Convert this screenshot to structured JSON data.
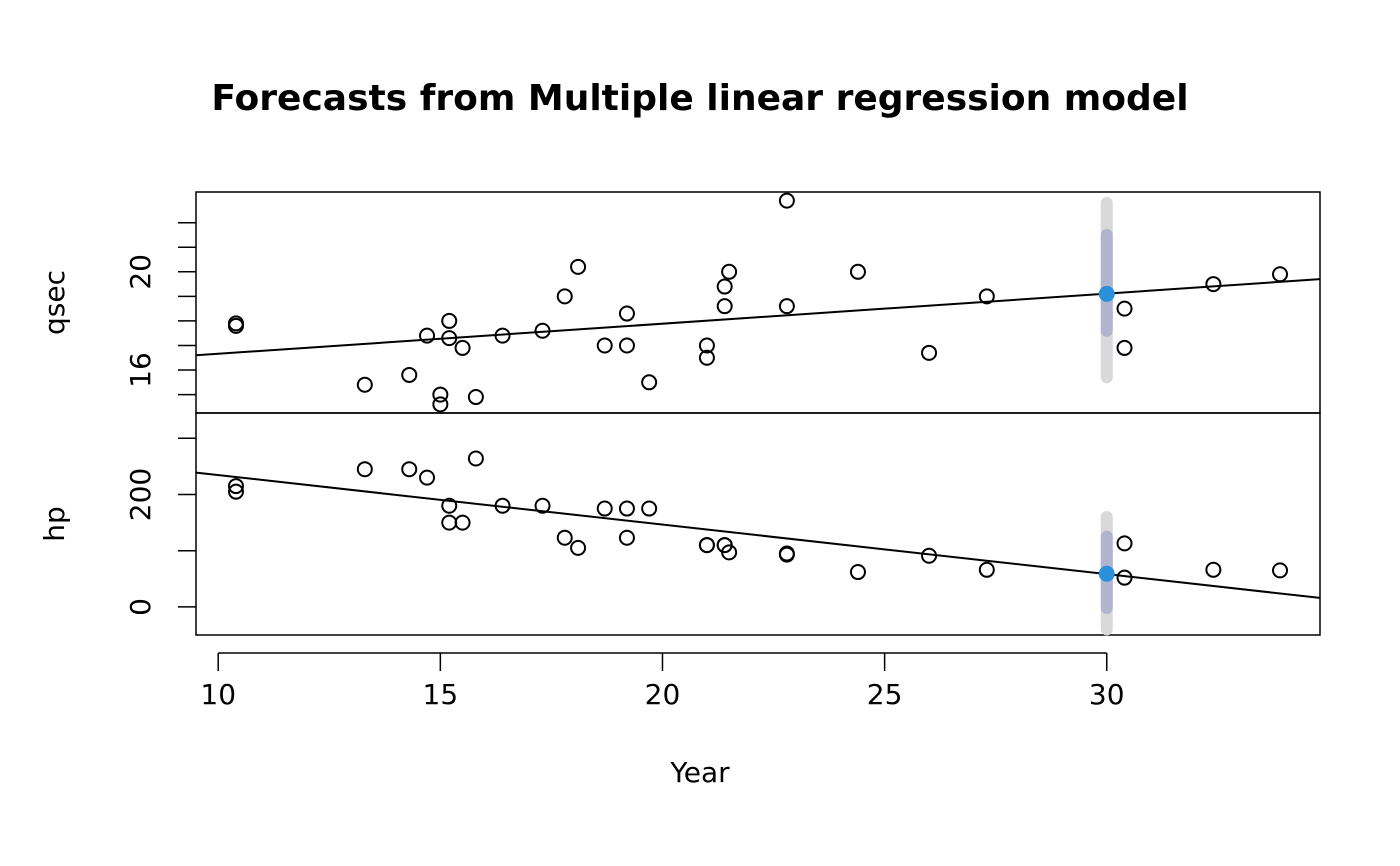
{
  "chart_data": {
    "type": "scatter",
    "title": "Forecasts from Multiple linear regression model",
    "xlabel": "Year",
    "x_ticks": [
      10,
      15,
      20,
      25,
      30
    ],
    "xlim": [
      9.5,
      34.8
    ],
    "colors": {
      "points": "#000000",
      "forecast_point": "#2a90da",
      "interval_80": "#b0b4cc",
      "interval_95": "#d9d9dc",
      "fit_line": "#000000"
    },
    "panels": [
      {
        "ylabel": "qsec",
        "ylim": [
          14.25,
          23.25
        ],
        "y_ticks": [
          15,
          16,
          17,
          18,
          19,
          20,
          21,
          22
        ],
        "y_tick_labels": [
          "",
          "16",
          "",
          "",
          "",
          "20",
          "",
          ""
        ],
        "fit_line": {
          "x": [
            9.5,
            34.8
          ],
          "y": [
            16.6,
            19.7
          ]
        },
        "forecast": {
          "x": 30,
          "y": 19.1,
          "lo80": 17.6,
          "hi80": 21.5,
          "lo95": 15.7,
          "hi95": 22.8
        },
        "x": [
          10.4,
          10.4,
          13.3,
          14.3,
          14.7,
          15.0,
          15.0,
          15.2,
          15.2,
          15.5,
          15.8,
          16.4,
          17.3,
          17.8,
          18.1,
          18.7,
          19.2,
          19.2,
          19.7,
          21.0,
          21.0,
          21.4,
          21.4,
          21.5,
          22.8,
          22.8,
          24.4,
          26.0,
          27.3,
          30.4,
          30.4,
          32.4,
          33.9
        ],
        "y": [
          17.8,
          17.9,
          15.4,
          15.8,
          17.4,
          15.0,
          14.6,
          17.3,
          18.0,
          16.9,
          14.9,
          17.4,
          17.6,
          19.0,
          20.2,
          17.0,
          18.3,
          17.0,
          15.5,
          17.0,
          16.5,
          19.4,
          18.6,
          20.0,
          22.9,
          18.6,
          20.0,
          16.7,
          19.0,
          18.5,
          16.9,
          19.5,
          19.9
        ]
      },
      {
        "ylabel": "hp",
        "ylim": [
          -50,
          345
        ],
        "y_ticks": [
          0,
          100,
          200,
          300
        ],
        "y_tick_labels": [
          "0",
          "",
          "200",
          ""
        ],
        "fit_line": {
          "x": [
            9.5,
            34.8
          ],
          "y": [
            239,
            16
          ]
        },
        "forecast": {
          "x": 30,
          "y": 59,
          "lo80": -2,
          "hi80": 125,
          "lo95": -40,
          "hi95": 160
        },
        "x": [
          10.4,
          10.4,
          13.3,
          14.3,
          14.7,
          15.2,
          15.2,
          15.5,
          15.8,
          16.4,
          17.3,
          17.8,
          18.1,
          18.7,
          19.2,
          19.2,
          19.7,
          21.0,
          21.0,
          21.4,
          21.4,
          21.5,
          22.8,
          22.8,
          24.4,
          26.0,
          27.3,
          30.4,
          30.4,
          32.4,
          33.9
        ],
        "y": [
          215,
          205,
          245,
          245,
          230,
          180,
          150,
          150,
          264,
          180,
          180,
          123,
          105,
          175,
          175,
          123,
          175,
          110,
          110,
          110,
          110,
          97,
          93,
          95,
          62,
          91,
          66,
          113,
          52,
          66,
          65
        ]
      }
    ]
  }
}
